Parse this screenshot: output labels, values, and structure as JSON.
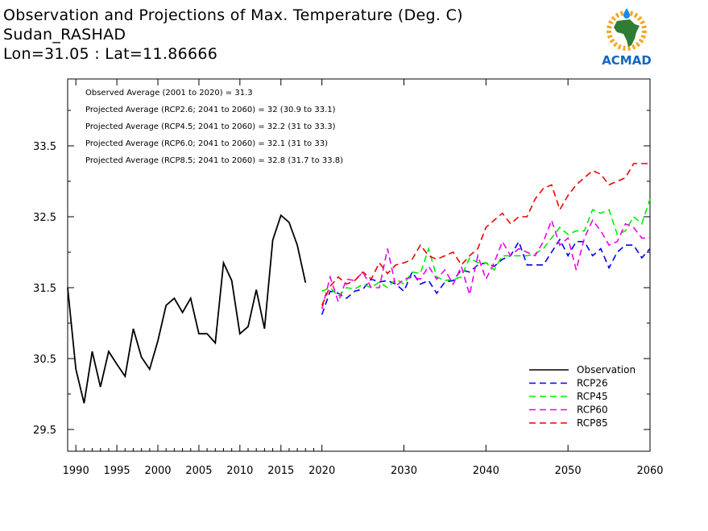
{
  "header": {
    "title": "Observation and Projections of Max. Temperature (Deg. C)",
    "station": "Sudan_RASHAD",
    "coords": "Lon=31.05 : Lat=11.86666"
  },
  "logo": {
    "text": "ACMAD",
    "icon": "africa-map-icon",
    "colors": {
      "map": "#2e7d32",
      "sun": "#f5a623",
      "drop": "#1e88e5",
      "text": "#1565c0"
    }
  },
  "annotations": [
    "Observed Average (2001 to 2020) = 31.3",
    "Projected Average (RCP2.6; 2041 to 2060) = 32 (30.9 to 33.1)",
    "Projected Average (RCP4.5; 2041 to 2060) = 32.2 (31 to 33.3)",
    "Projected Average (RCP6.0; 2041 to 2060) = 32.1 (31 to 33)",
    "Projected Average (RCP8.5; 2041 to 2060) = 32.8 (31.7 to 33.8)"
  ],
  "chart_data": {
    "type": "line",
    "title": "Observation and Projections of Max. Temperature (Deg. C)",
    "xlim": [
      1989,
      2060
    ],
    "ylim": [
      29.5,
      34.2
    ],
    "x_ticks": [
      1990,
      1995,
      2000,
      2005,
      2010,
      2015,
      2020,
      2030,
      2040,
      2050,
      2060
    ],
    "x_tick_labels": [
      "1990",
      "1995",
      "2000",
      "2005",
      "2010",
      "2015",
      "2020",
      "2030",
      "2040",
      "2050",
      "2060"
    ],
    "y_ticks": [
      29.5,
      30.5,
      31.5,
      32.5,
      33.5
    ],
    "y_tick_labels": [
      "29.5",
      "30.5",
      "31.5",
      "32.5",
      "33.5"
    ],
    "legend_position": "bottom-right",
    "series": [
      {
        "name": "Observation",
        "color": "#000000",
        "dashed": false,
        "x": [
          1989,
          1990,
          1991,
          1992,
          1993,
          1994,
          1995,
          1996,
          1997,
          1998,
          1999,
          2000,
          2001,
          2002,
          2003,
          2004,
          2005,
          2006,
          2007,
          2008,
          2009,
          2010,
          2011,
          2012,
          2013,
          2014,
          2015,
          2016,
          2017,
          2018,
          2019,
          2020
        ],
        "y": [
          31.5,
          30.35,
          29.87,
          30.6,
          30.1,
          30.6,
          30.42,
          30.25,
          30.92,
          30.52,
          30.35,
          30.75,
          31.25,
          31.35,
          31.15,
          31.35,
          30.85,
          30.85,
          30.72,
          31.85,
          31.6,
          30.85,
          30.95,
          31.47,
          30.92,
          32.17,
          32.52,
          32.42,
          32.1,
          31.57,
          null,
          null
        ]
      },
      {
        "name": "RCP26",
        "color": "#0000ee",
        "dashed": true,
        "x": [
          2020,
          2021,
          2022,
          2023,
          2024,
          2025,
          2026,
          2027,
          2028,
          2029,
          2030,
          2031,
          2032,
          2033,
          2034,
          2035,
          2036,
          2037,
          2038,
          2039,
          2040,
          2041,
          2042,
          2043,
          2044,
          2045,
          2046,
          2047,
          2048,
          2049,
          2050,
          2051,
          2052,
          2053,
          2054,
          2055,
          2056,
          2057,
          2058,
          2059,
          2060
        ],
        "y": [
          31.12,
          31.45,
          31.42,
          31.35,
          31.45,
          31.48,
          31.62,
          31.58,
          31.6,
          31.55,
          31.45,
          31.72,
          31.55,
          31.6,
          31.42,
          31.58,
          31.6,
          31.75,
          31.72,
          31.82,
          31.85,
          31.8,
          31.9,
          31.95,
          32.15,
          31.82,
          31.82,
          31.82,
          32.0,
          32.18,
          31.95,
          32.15,
          32.15,
          31.95,
          32.05,
          31.78,
          32.0,
          32.1,
          32.1,
          31.92,
          32.05
        ]
      },
      {
        "name": "RCP45",
        "color": "#00ee00",
        "dashed": true,
        "x": [
          2020,
          2021,
          2022,
          2023,
          2024,
          2025,
          2026,
          2027,
          2028,
          2029,
          2030,
          2031,
          2032,
          2033,
          2034,
          2035,
          2036,
          2037,
          2038,
          2039,
          2040,
          2041,
          2042,
          2043,
          2044,
          2045,
          2046,
          2047,
          2048,
          2049,
          2050,
          2051,
          2052,
          2053,
          2054,
          2055,
          2056,
          2057,
          2058,
          2059,
          2060
        ],
        "y": [
          31.45,
          31.5,
          31.38,
          31.5,
          31.48,
          31.55,
          31.5,
          31.58,
          31.5,
          31.62,
          31.55,
          31.72,
          31.7,
          32.05,
          31.65,
          31.6,
          31.62,
          31.65,
          31.92,
          31.85,
          31.85,
          31.75,
          31.95,
          31.95,
          31.95,
          31.95,
          31.98,
          32.05,
          32.2,
          32.35,
          32.25,
          32.3,
          32.3,
          32.6,
          32.55,
          32.6,
          32.25,
          32.3,
          32.5,
          32.4,
          32.75
        ]
      },
      {
        "name": "RCP60",
        "color": "#ee00ee",
        "dashed": true,
        "x": [
          2020,
          2021,
          2022,
          2023,
          2024,
          2025,
          2026,
          2027,
          2028,
          2029,
          2030,
          2031,
          2032,
          2033,
          2034,
          2035,
          2036,
          2037,
          2038,
          2039,
          2040,
          2041,
          2042,
          2043,
          2044,
          2045,
          2046,
          2047,
          2048,
          2049,
          2050,
          2051,
          2052,
          2053,
          2054,
          2055,
          2056,
          2057,
          2058,
          2059,
          2060
        ],
        "y": [
          31.2,
          31.65,
          31.3,
          31.62,
          31.6,
          31.72,
          31.5,
          31.5,
          32.05,
          31.52,
          31.62,
          31.65,
          31.62,
          31.8,
          31.62,
          31.75,
          31.55,
          31.8,
          31.4,
          31.95,
          31.62,
          31.85,
          32.15,
          31.95,
          32.05,
          32.0,
          31.95,
          32.15,
          32.45,
          32.1,
          32.2,
          31.75,
          32.2,
          32.45,
          32.3,
          32.1,
          32.15,
          32.4,
          32.35,
          32.2,
          32.2
        ]
      },
      {
        "name": "RCP85",
        "color": "#ee0000",
        "dashed": true,
        "x": [
          2020,
          2021,
          2022,
          2023,
          2024,
          2025,
          2026,
          2027,
          2028,
          2029,
          2030,
          2031,
          2032,
          2033,
          2034,
          2035,
          2036,
          2037,
          2038,
          2039,
          2040,
          2041,
          2042,
          2043,
          2044,
          2045,
          2046,
          2047,
          2048,
          2049,
          2050,
          2051,
          2052,
          2053,
          2054,
          2055,
          2056,
          2057,
          2058,
          2059,
          2060
        ],
        "y": [
          31.25,
          31.52,
          31.65,
          31.55,
          31.6,
          31.72,
          31.62,
          31.85,
          31.7,
          31.82,
          31.85,
          31.9,
          32.1,
          31.95,
          31.9,
          31.95,
          32.0,
          31.82,
          31.95,
          32.05,
          32.35,
          32.45,
          32.55,
          32.4,
          32.5,
          32.5,
          32.75,
          32.9,
          32.95,
          32.6,
          32.8,
          32.95,
          33.05,
          33.15,
          33.1,
          32.95,
          33.0,
          33.05,
          33.25,
          33.25,
          33.25
        ]
      }
    ]
  }
}
